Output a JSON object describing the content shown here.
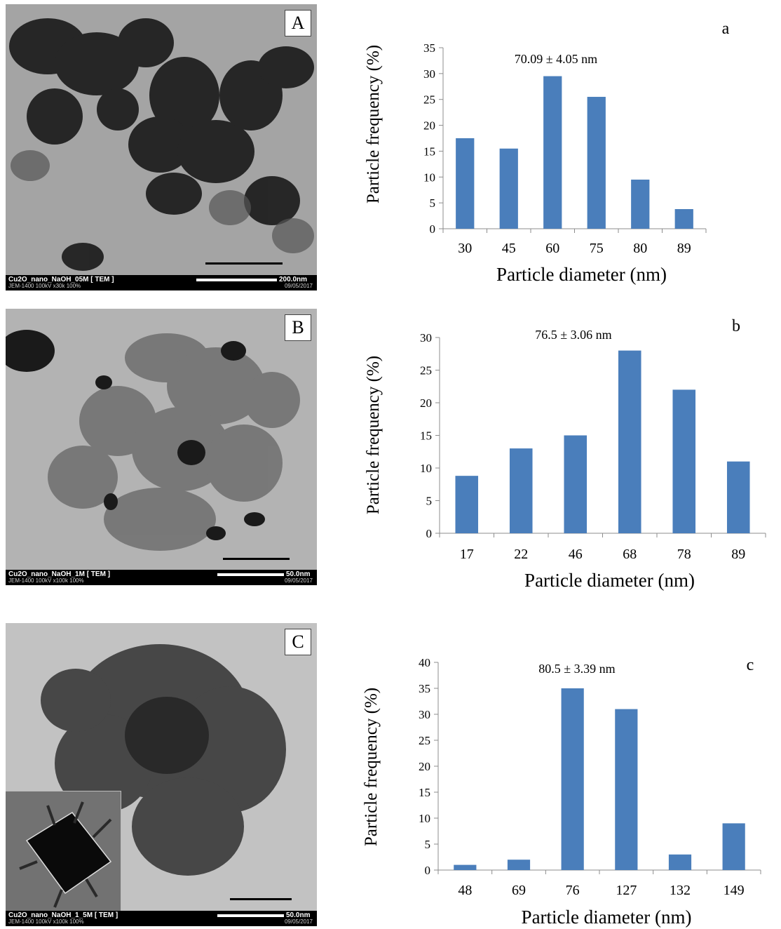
{
  "tem_images": [
    {
      "label": "A",
      "caption": "Cu2O_nano_NaOH_05M [ TEM ]",
      "info": "JEM-1400 100kV x30k 100%",
      "scale": "200.0nm",
      "date": "09/05/2017"
    },
    {
      "label": "B",
      "caption": "Cu2O_nano_NaOH_1M [ TEM ]",
      "info": "JEM-1400 100kV x100k 100%",
      "scale": "50.0nm",
      "date": "09/05/2017"
    },
    {
      "label": "C",
      "caption": "Cu2O_nano_NaOH_1_5M [ TEM ]",
      "info": "JEM-1400 100kV x100k 100%",
      "scale": "50.0nm",
      "date": "09/05/2017"
    }
  ],
  "chart_data": [
    {
      "type": "bar",
      "panel_label": "a",
      "annotation": "70.09 ± 4.05  nm",
      "categories": [
        "30",
        "45",
        "60",
        "75",
        "80",
        "89"
      ],
      "values": [
        17.5,
        15.5,
        29.5,
        25.5,
        9.5,
        3.8
      ],
      "xlabel": "Particle diameter (nm)",
      "ylabel": "Particle frequency (%)",
      "ylim": [
        0,
        35
      ],
      "yticks": [
        0,
        5,
        10,
        15,
        20,
        25,
        30,
        35
      ],
      "bar_color": "#4a7ebb",
      "grid": false
    },
    {
      "type": "bar",
      "panel_label": "b",
      "annotation": "76.5 ± 3.06  nm",
      "categories": [
        "17",
        "22",
        "46",
        "68",
        "78",
        "89"
      ],
      "values": [
        8.8,
        13,
        15,
        28,
        22,
        11
      ],
      "xlabel": "Particle diameter (nm)",
      "ylabel": "Particle frequency (%)",
      "ylim": [
        0,
        30
      ],
      "yticks": [
        0,
        5,
        10,
        15,
        20,
        25,
        30
      ],
      "bar_color": "#4a7ebb",
      "grid": false
    },
    {
      "type": "bar",
      "panel_label": "c",
      "annotation": "80.5 ± 3.39  nm",
      "categories": [
        "48",
        "69",
        "76",
        "127",
        "132",
        "149"
      ],
      "values": [
        1,
        2,
        35,
        31,
        3,
        9
      ],
      "xlabel": "Particle diameter (nm)",
      "ylabel": "Particle frequency (%)",
      "ylim": [
        0,
        40
      ],
      "yticks": [
        0,
        5,
        10,
        15,
        20,
        25,
        30,
        35,
        40
      ],
      "bar_color": "#4a7ebb",
      "grid": false
    }
  ]
}
